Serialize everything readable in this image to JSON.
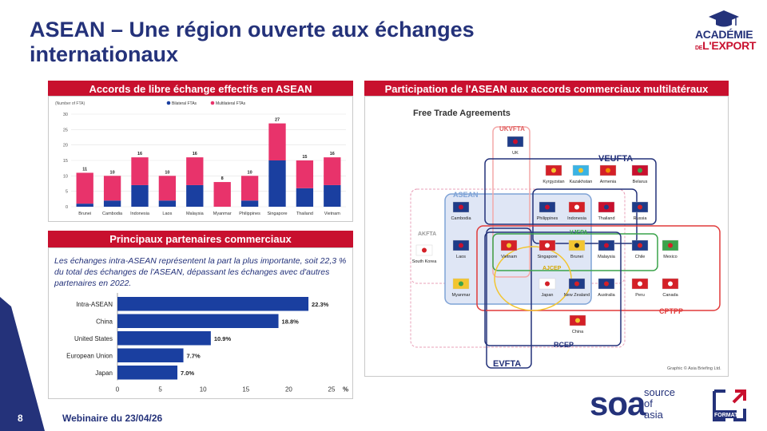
{
  "slide": {
    "title_line1": "ASEAN – Une région ouverte aux échanges",
    "title_line2": "internationaux",
    "page_number": "8",
    "footer": "Webinaire du 23/04/26"
  },
  "logo_academie": {
    "line1": "ACADÉMIE",
    "line2_prefix": "DE",
    "line2": "L'EXPORT"
  },
  "logo_soa": {
    "mark": "soa",
    "line1": "source",
    "line2": "of",
    "line3": "asia"
  },
  "logo_format": {
    "text": "FORMAT"
  },
  "panels": {
    "fta_header": "Accords de libre échange effectifs en ASEAN",
    "partners_header": "Principaux partenaires commerciaux",
    "multi_header": "Participation de l'ASEAN aux accords commerciaux multilatéraux",
    "partners_text": "Les échanges intra-ASEAN représentent la part la plus importante, soit 22,3 % du total des échanges de l'ASEAN, dépassant les échanges avec d'autres partenaires en 2022."
  },
  "chart_data": [
    {
      "type": "bar",
      "stacked": true,
      "ylabel": "(Number of FTA)",
      "ylim": [
        0,
        30
      ],
      "yticks": [
        0,
        5,
        10,
        15,
        20,
        25,
        30
      ],
      "categories": [
        "Brunei",
        "Cambodia",
        "Indonesia",
        "Laos",
        "Malaysia",
        "Myanmar",
        "Philippines",
        "Singapore",
        "Thailand",
        "Vietnam"
      ],
      "series": [
        {
          "name": "Bilateral FTAs",
          "color": "#1a3fa0",
          "values": [
            1,
            2,
            7,
            2,
            7,
            0,
            2,
            15,
            6,
            7
          ]
        },
        {
          "name": "Multilateral FTAs",
          "color": "#e8336b",
          "values": [
            10,
            8,
            9,
            8,
            9,
            8,
            8,
            12,
            9,
            9
          ]
        }
      ],
      "totals": [
        "11",
        "10",
        "16",
        "10",
        "16",
        "8",
        "10",
        "27",
        "15",
        "16"
      ],
      "legend_position": "top-right",
      "grid": true
    },
    {
      "type": "bar",
      "orientation": "horizontal",
      "categories": [
        "Intra-ASEAN",
        "China",
        "United States",
        "European Union",
        "Japan"
      ],
      "values": [
        22.3,
        18.8,
        10.9,
        7.7,
        7.0
      ],
      "labels": [
        "22.3%",
        "18.8%",
        "10.9%",
        "7.7%",
        "7.0%"
      ],
      "xlim": [
        0,
        25
      ],
      "xticks": [
        0,
        5,
        10,
        15,
        20,
        25
      ],
      "xunit": "%",
      "color": "#1a3fa0"
    }
  ],
  "venn": {
    "title": "Free Trade Agreements",
    "credit": "Graphic © Asia Briefing Ltd.",
    "groups": {
      "ukvfta": "UKVFTA",
      "veufta": "VEUFTA",
      "asean": "ASEAN",
      "akfta": "AKFTA",
      "vjepa": "VJEPA",
      "ajcep": "AJCEP",
      "cptpp": "CPTPP",
      "rcep": "RCEP",
      "evfta": "EVFTA"
    },
    "countries": {
      "uk": "UK",
      "kyrgyzstan": "Kyrgyzstan",
      "kazakhstan": "Kazakhstan",
      "armenia": "Armenia",
      "belarus": "Belarus",
      "cambodia": "Cambodia",
      "philippines": "Philippines",
      "indonesia": "Indonesia",
      "thailand": "Thailand",
      "russia": "Russia",
      "south_korea": "South Korea",
      "laos": "Laos",
      "vietnam": "Vietnam",
      "singapore": "Singapore",
      "brunei": "Brunei",
      "malaysia": "Malaysia",
      "chile": "Chile",
      "mexico": "Mexico",
      "myanmar": "Myanmar",
      "japan": "Japan",
      "new_zealand": "New Zealand",
      "australia": "Australia",
      "peru": "Peru",
      "canada": "Canada",
      "china": "China"
    }
  }
}
